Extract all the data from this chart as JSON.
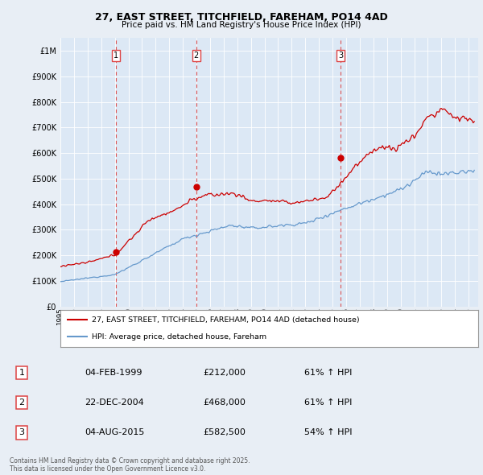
{
  "title_line1": "27, EAST STREET, TITCHFIELD, FAREHAM, PO14 4AD",
  "title_line2": "Price paid vs. HM Land Registry's House Price Index (HPI)",
  "background_color": "#e8eef5",
  "plot_bg_color": "#dce8f5",
  "ylim": [
    0,
    1050000
  ],
  "yticks": [
    0,
    100000,
    200000,
    300000,
    400000,
    500000,
    600000,
    700000,
    800000,
    900000,
    1000000
  ],
  "ytick_labels": [
    "£0",
    "£100K",
    "£200K",
    "£300K",
    "£400K",
    "£500K",
    "£600K",
    "£700K",
    "£800K",
    "£900K",
    "£1M"
  ],
  "xlim_start": 1995.0,
  "xlim_end": 2025.7,
  "sale_points": [
    {
      "year": 1999.09,
      "price": 212000,
      "label": "1"
    },
    {
      "year": 2004.98,
      "price": 468000,
      "label": "2"
    },
    {
      "year": 2015.59,
      "price": 582500,
      "label": "3"
    }
  ],
  "sale_vline_color": "#dd4444",
  "legend_entry1": "27, EAST STREET, TITCHFIELD, FAREHAM, PO14 4AD (detached house)",
  "legend_entry2": "HPI: Average price, detached house, Fareham",
  "table_entries": [
    {
      "num": "1",
      "date": "04-FEB-1999",
      "price": "£212,000",
      "hpi": "61% ↑ HPI"
    },
    {
      "num": "2",
      "date": "22-DEC-2004",
      "price": "£468,000",
      "hpi": "61% ↑ HPI"
    },
    {
      "num": "3",
      "date": "04-AUG-2015",
      "price": "£582,500",
      "hpi": "54% ↑ HPI"
    }
  ],
  "footer": "Contains HM Land Registry data © Crown copyright and database right 2025.\nThis data is licensed under the Open Government Licence v3.0.",
  "red_line_color": "#cc0000",
  "blue_line_color": "#6699cc"
}
